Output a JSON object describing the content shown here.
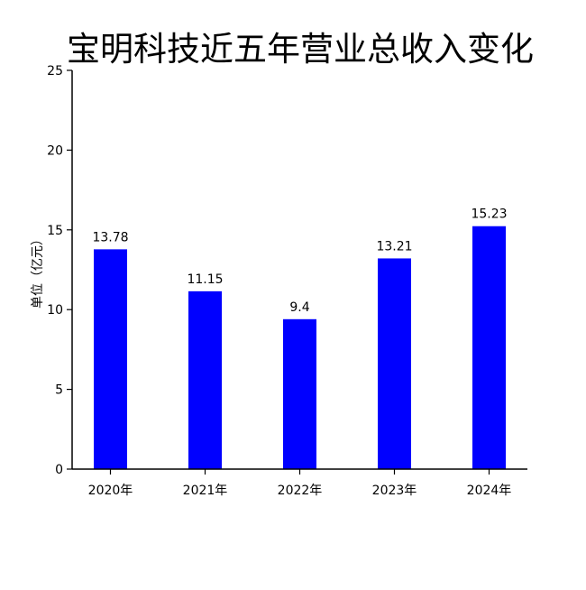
{
  "chart_data": {
    "type": "bar",
    "title": "宝明科技近五年营业总收入变化",
    "xlabel": "",
    "ylabel": "单位（亿元）",
    "categories": [
      "2020年",
      "2021年",
      "2022年",
      "2023年",
      "2024年"
    ],
    "values": [
      13.78,
      11.15,
      9.4,
      13.21,
      15.23
    ],
    "value_labels": [
      "13.78",
      "11.15",
      "9.4",
      "13.21",
      "15.23"
    ],
    "ylim": [
      0,
      25
    ],
    "yticks": [
      0,
      5,
      10,
      15,
      20,
      25
    ],
    "ytick_labels": [
      "0",
      "5",
      "10",
      "15",
      "20",
      "25"
    ],
    "bar_color": "#0000ff",
    "grid": false,
    "legend": "none"
  }
}
